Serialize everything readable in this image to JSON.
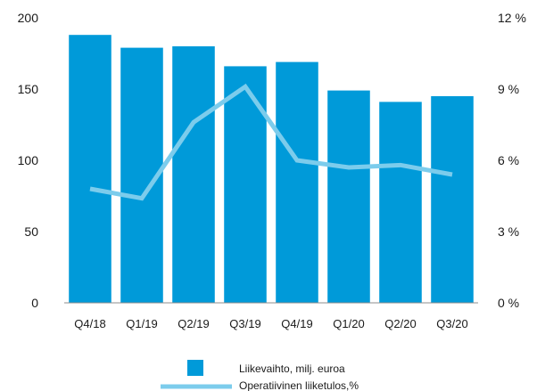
{
  "chart_data": {
    "type": "bar",
    "categories": [
      "Q4/18",
      "Q1/19",
      "Q2/19",
      "Q3/19",
      "Q4/19",
      "Q1/20",
      "Q2/20",
      "Q3/20"
    ],
    "series": [
      {
        "name": "Liikevaihto, milj. euroa",
        "type": "bar",
        "axis": "left",
        "color": "#009ad9",
        "values": [
          188,
          179,
          180,
          166,
          169,
          149,
          141,
          145
        ]
      },
      {
        "name": "Operatiivinen liiketulos,%",
        "type": "line",
        "axis": "right",
        "color": "#7cccec",
        "values": [
          4.8,
          4.4,
          7.6,
          9.1,
          6.0,
          5.7,
          5.8,
          5.4
        ]
      }
    ],
    "y_left": {
      "ylim": [
        0,
        200
      ],
      "ticks": [
        "0",
        "50",
        "100",
        "150",
        "200"
      ]
    },
    "y_right": {
      "ylim": [
        0,
        12
      ],
      "ticks": [
        "0 %",
        "3 %",
        "6 %",
        "9 %",
        "12 %"
      ]
    },
    "grid": false,
    "legend_position": "bottom-center"
  }
}
